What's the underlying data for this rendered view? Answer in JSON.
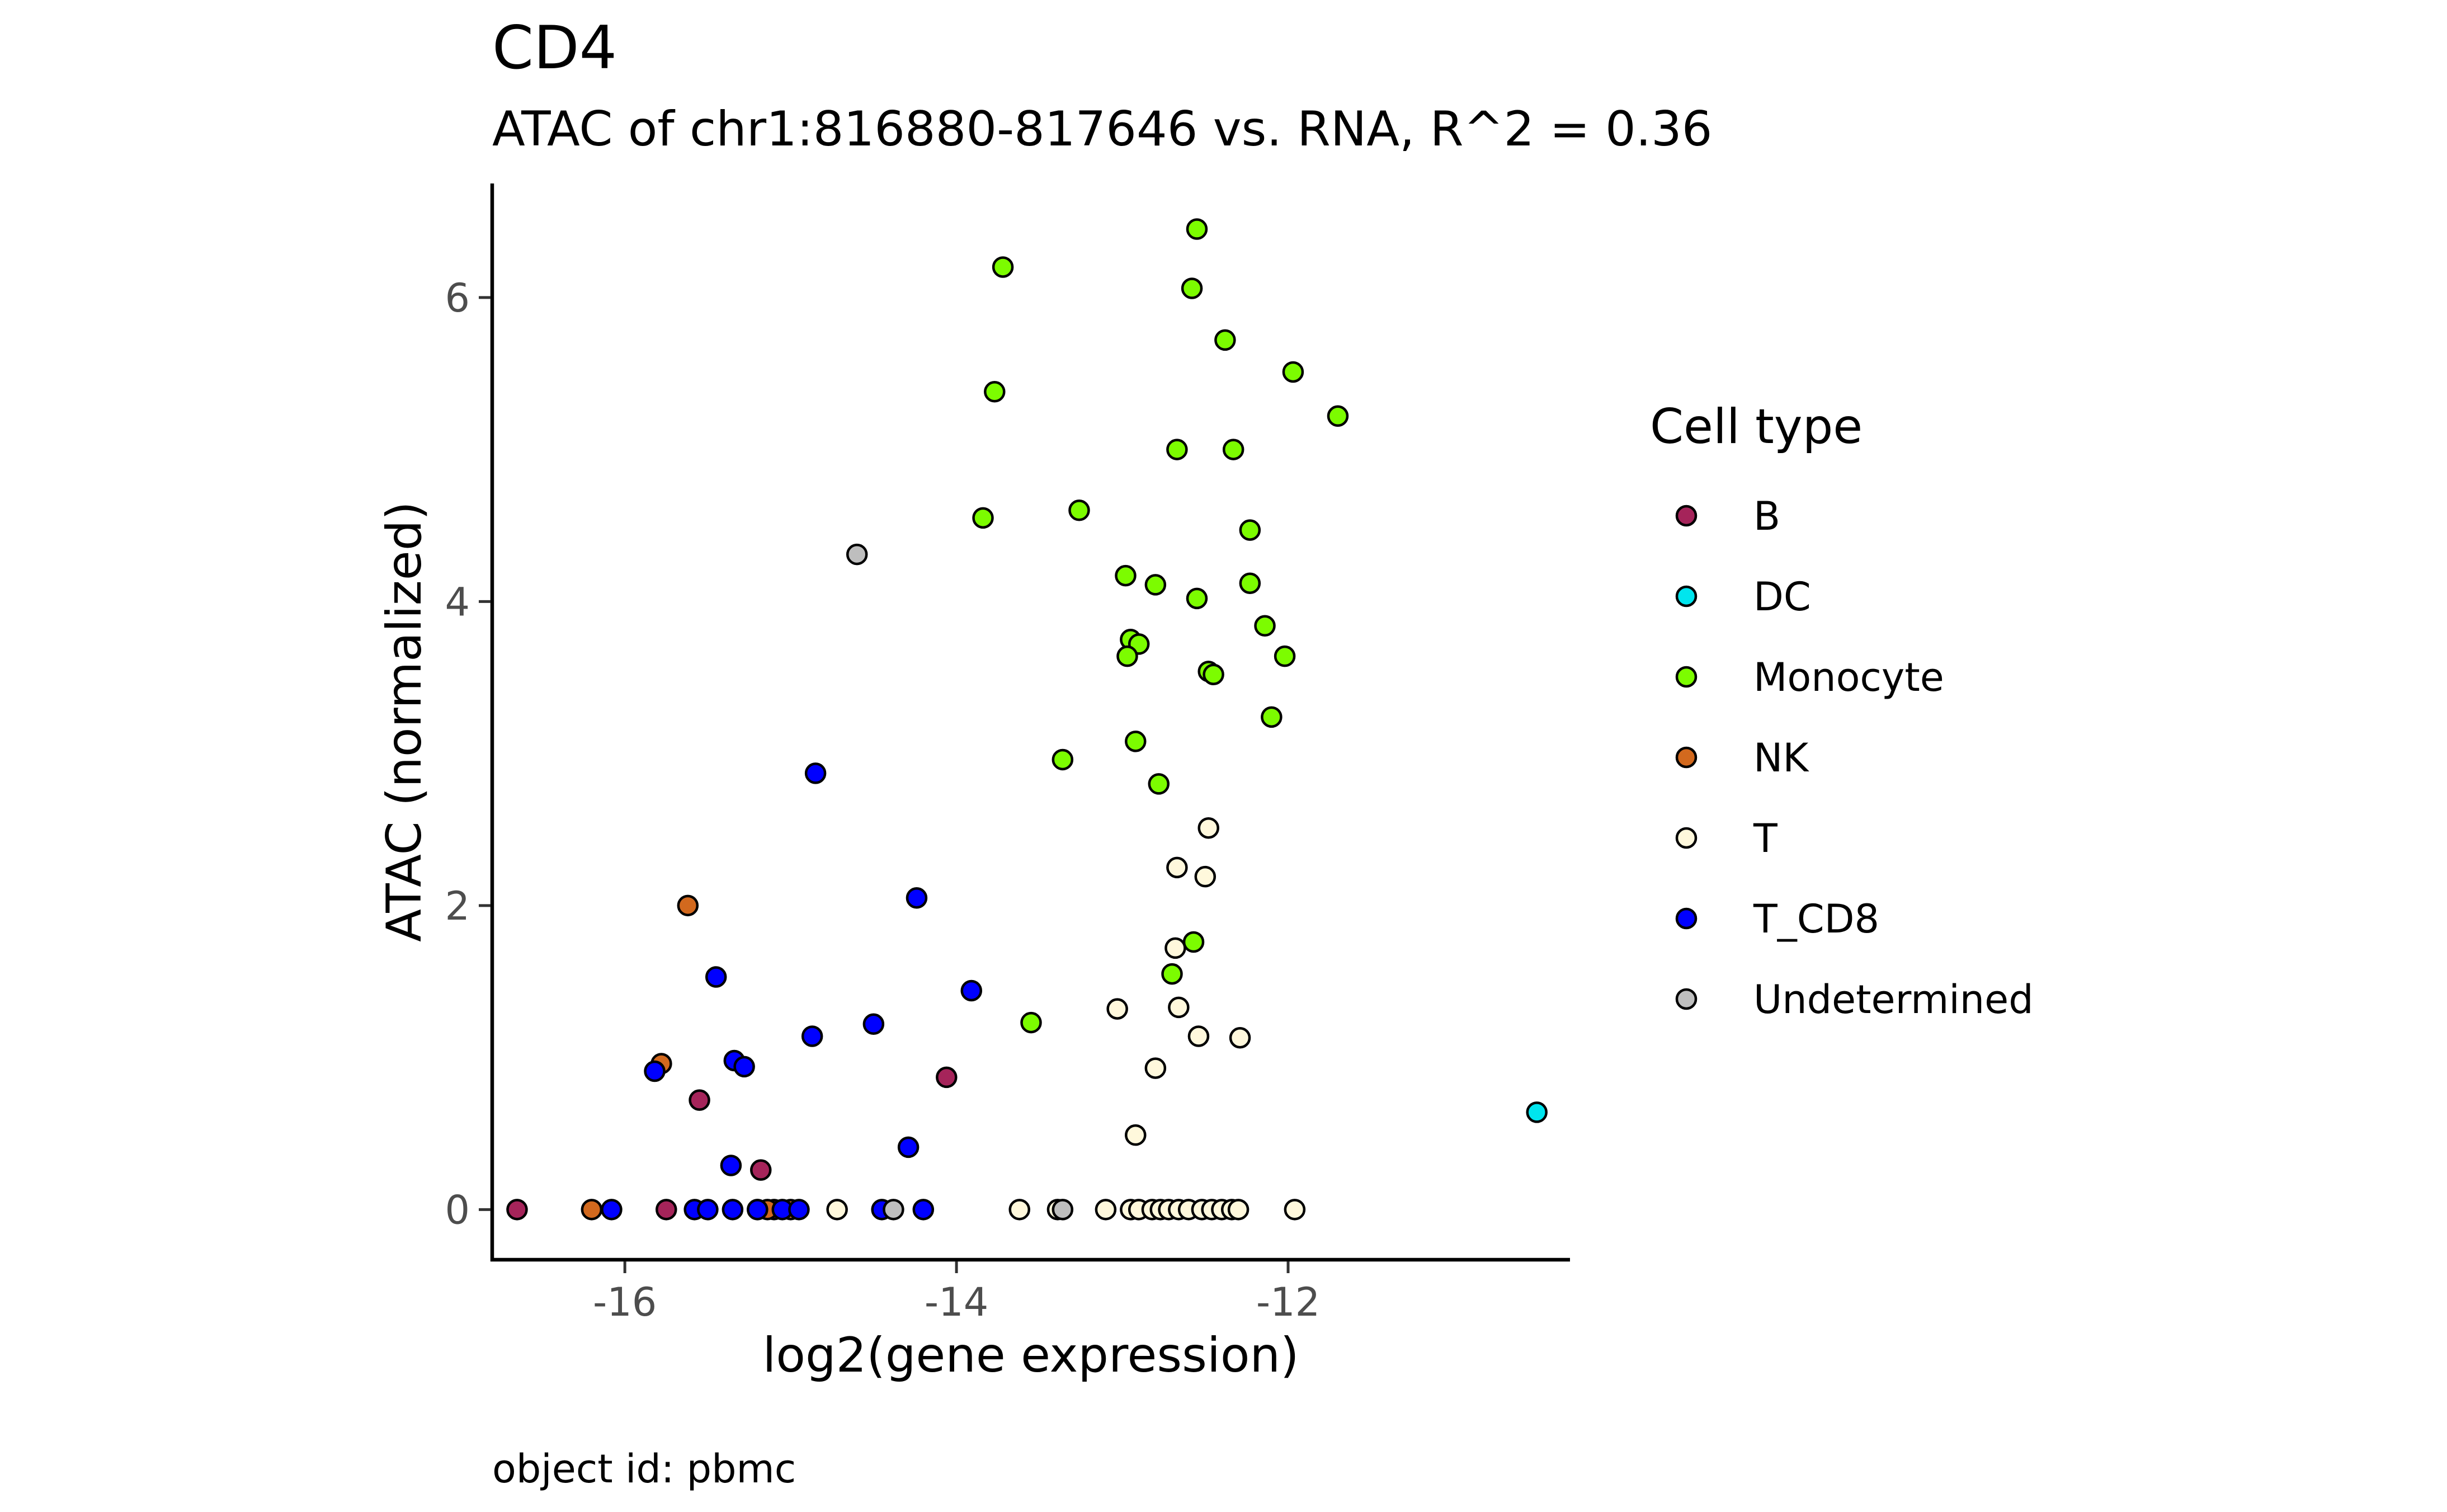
{
  "chart_data": {
    "type": "scatter",
    "title": "CD4",
    "subtitle": "ATAC of chr1:816880-817646 vs. RNA, R^2 = 0.36",
    "xlabel": "log2(gene expression)",
    "ylabel": "ATAC (normalized)",
    "caption": "object id: pbmc",
    "xlim": [
      -16.8,
      -10.3
    ],
    "ylim": [
      -0.33,
      6.75
    ],
    "xticks": [
      -16,
      -14,
      -12
    ],
    "xtick_labels": [
      "-16",
      "-14",
      "-12"
    ],
    "yticks": [
      0,
      2,
      4,
      6
    ],
    "ytick_labels": [
      "0",
      "2",
      "4",
      "6"
    ],
    "grid": false,
    "legend": {
      "title": "Cell type",
      "position": "right",
      "entries": [
        "B",
        "DC",
        "Monocyte",
        "NK",
        "T",
        "T_CD8",
        "Undetermined"
      ]
    },
    "series": [
      {
        "name": "B",
        "color": "#A5245A",
        "points": [
          [
            -16.65,
            0
          ],
          [
            -15.75,
            0
          ],
          [
            -15.55,
            0.72
          ],
          [
            -15.2,
            0
          ],
          [
            -15.18,
            0.26
          ],
          [
            -15.1,
            0
          ],
          [
            -14.06,
            0.87
          ]
        ]
      },
      {
        "name": "DC",
        "color": "#00E5EE",
        "points": [
          [
            -10.5,
            0.64
          ]
        ]
      },
      {
        "name": "Monocyte",
        "color": "#7CFC00",
        "points": [
          [
            -13.72,
            6.2
          ],
          [
            -12.55,
            6.45
          ],
          [
            -12.58,
            6.06
          ],
          [
            -12.38,
            5.72
          ],
          [
            -11.97,
            5.51
          ],
          [
            -11.7,
            5.22
          ],
          [
            -13.77,
            5.38
          ],
          [
            -12.67,
            5.0
          ],
          [
            -12.33,
            5.0
          ],
          [
            -13.84,
            4.55
          ],
          [
            -13.26,
            4.6
          ],
          [
            -12.23,
            4.47
          ],
          [
            -12.98,
            4.17
          ],
          [
            -12.8,
            4.11
          ],
          [
            -12.55,
            4.02
          ],
          [
            -12.23,
            4.12
          ],
          [
            -12.14,
            3.84
          ],
          [
            -12.02,
            3.64
          ],
          [
            -12.95,
            3.75
          ],
          [
            -12.9,
            3.72
          ],
          [
            -12.97,
            3.64
          ],
          [
            -12.48,
            3.54
          ],
          [
            -12.45,
            3.52
          ],
          [
            -12.1,
            3.24
          ],
          [
            -12.92,
            3.08
          ],
          [
            -13.36,
            2.96
          ],
          [
            -12.78,
            2.8
          ],
          [
            -12.57,
            1.76
          ],
          [
            -12.7,
            1.55
          ],
          [
            -13.55,
            1.23
          ]
        ]
      },
      {
        "name": "NK",
        "color": "#D2691E",
        "points": [
          [
            -16.2,
            0
          ],
          [
            -15.62,
            2.0
          ],
          [
            -15.78,
            0.96
          ],
          [
            -15.0,
            0
          ],
          [
            -15.14,
            0
          ]
        ]
      },
      {
        "name": "T",
        "color": "#FFF8DC",
        "points": [
          [
            -12.48,
            2.51
          ],
          [
            -12.67,
            2.25
          ],
          [
            -12.5,
            2.19
          ],
          [
            -12.68,
            1.72
          ],
          [
            -13.03,
            1.32
          ],
          [
            -12.66,
            1.33
          ],
          [
            -12.54,
            1.14
          ],
          [
            -12.29,
            1.13
          ],
          [
            -12.8,
            0.93
          ],
          [
            -12.92,
            0.49
          ],
          [
            -14.72,
            0
          ],
          [
            -13.62,
            0
          ],
          [
            -13.39,
            0
          ],
          [
            -13.1,
            0
          ],
          [
            -12.95,
            0
          ],
          [
            -12.9,
            0
          ],
          [
            -12.82,
            0
          ],
          [
            -12.77,
            0
          ],
          [
            -12.72,
            0
          ],
          [
            -12.66,
            0
          ],
          [
            -12.6,
            0
          ],
          [
            -12.52,
            0
          ],
          [
            -12.46,
            0
          ],
          [
            -12.4,
            0
          ],
          [
            -12.34,
            0
          ],
          [
            -12.3,
            0
          ],
          [
            -11.96,
            0
          ]
        ]
      },
      {
        "name": "T_CD8",
        "color": "#0000FF",
        "points": [
          [
            -14.85,
            2.87
          ],
          [
            -14.24,
            2.05
          ],
          [
            -13.91,
            1.44
          ],
          [
            -15.45,
            1.53
          ],
          [
            -14.87,
            1.14
          ],
          [
            -14.5,
            1.22
          ],
          [
            -15.34,
            0.98
          ],
          [
            -15.28,
            0.94
          ],
          [
            -15.82,
            0.91
          ],
          [
            -14.29,
            0.41
          ],
          [
            -15.36,
            0.29
          ],
          [
            -16.08,
            0
          ],
          [
            -15.58,
            0
          ],
          [
            -15.5,
            0
          ],
          [
            -15.35,
            0
          ],
          [
            -15.2,
            0
          ],
          [
            -15.05,
            0
          ],
          [
            -14.95,
            0
          ],
          [
            -14.45,
            0
          ],
          [
            -14.2,
            0
          ]
        ]
      },
      {
        "name": "Undetermined",
        "color": "#BEBEBE",
        "points": [
          [
            -14.6,
            4.31
          ],
          [
            -14.38,
            0
          ],
          [
            -13.36,
            0
          ]
        ]
      }
    ]
  }
}
